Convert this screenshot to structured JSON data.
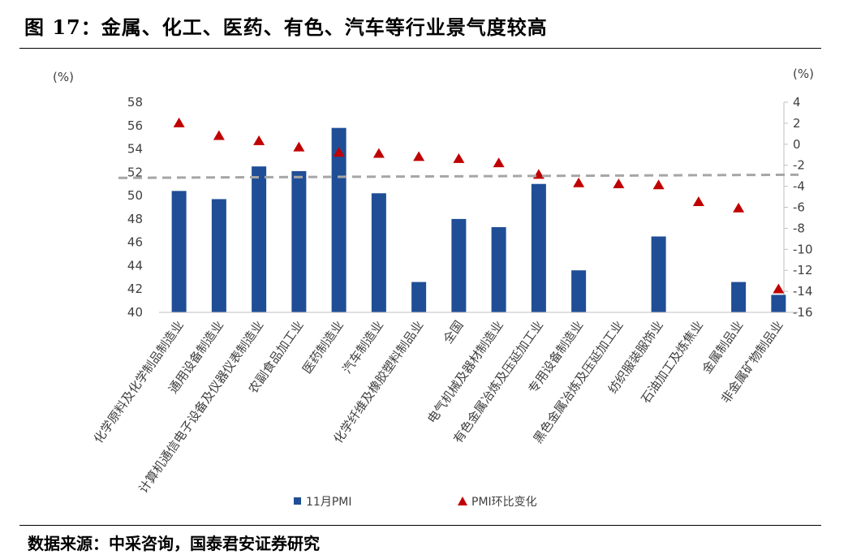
{
  "header": {
    "title": "图 17：金属、化工、医药、有色、汽车等行业景气度较高"
  },
  "footer": {
    "source": "数据来源：中采咨询，国泰君安证券研究"
  },
  "chart_data": {
    "type": "bar",
    "categories": [
      "化学原料及化学制品制造业",
      "通用设备制造业",
      "计算机通信电子设备及仪器仪表制造业",
      "农副食品加工业",
      "医药制造业",
      "汽车制造业",
      "化学纤维及橡胶塑料制品业",
      "全国",
      "电气机械及器材制造业",
      "有色金属冶炼及压延加工业",
      "专用设备制造业",
      "黑色金属冶炼及压延加工业",
      "纺织服装服饰业",
      "石油加工及炼焦业",
      "金属制品业",
      "非金属矿物制品业"
    ],
    "series": [
      {
        "name": "11月PMI",
        "type": "bar",
        "axis": "left",
        "color": "#1f4e96",
        "values": [
          50.4,
          49.7,
          52.5,
          52.1,
          55.8,
          50.2,
          42.6,
          48.0,
          47.3,
          51.0,
          43.6,
          null,
          46.5,
          null,
          42.6,
          41.5
        ]
      },
      {
        "name": "PMI环比变化",
        "type": "marker",
        "axis": "right",
        "color": "#c00000",
        "values": [
          2.0,
          0.8,
          0.3,
          -0.3,
          -0.8,
          -0.9,
          -1.2,
          -1.4,
          -1.8,
          -2.9,
          -3.7,
          -3.8,
          -3.9,
          -5.5,
          -6.1,
          -13.8
        ]
      }
    ],
    "reference_line": {
      "axis": "right",
      "from": -3.2,
      "to": -2.9,
      "style": "dashed",
      "color": "#a6a6a6"
    },
    "left_axis": {
      "label": "(%)",
      "ylim": [
        40,
        58
      ],
      "ticks": [
        40,
        42,
        44,
        46,
        48,
        50,
        52,
        54,
        56,
        58
      ]
    },
    "right_axis": {
      "label": "(%)",
      "ylim": [
        -16,
        4
      ],
      "ticks": [
        -16,
        -14,
        -12,
        -10,
        -8,
        -6,
        -4,
        -2,
        0,
        2,
        4
      ]
    },
    "legend": {
      "position": "bottom"
    },
    "grid": false
  }
}
